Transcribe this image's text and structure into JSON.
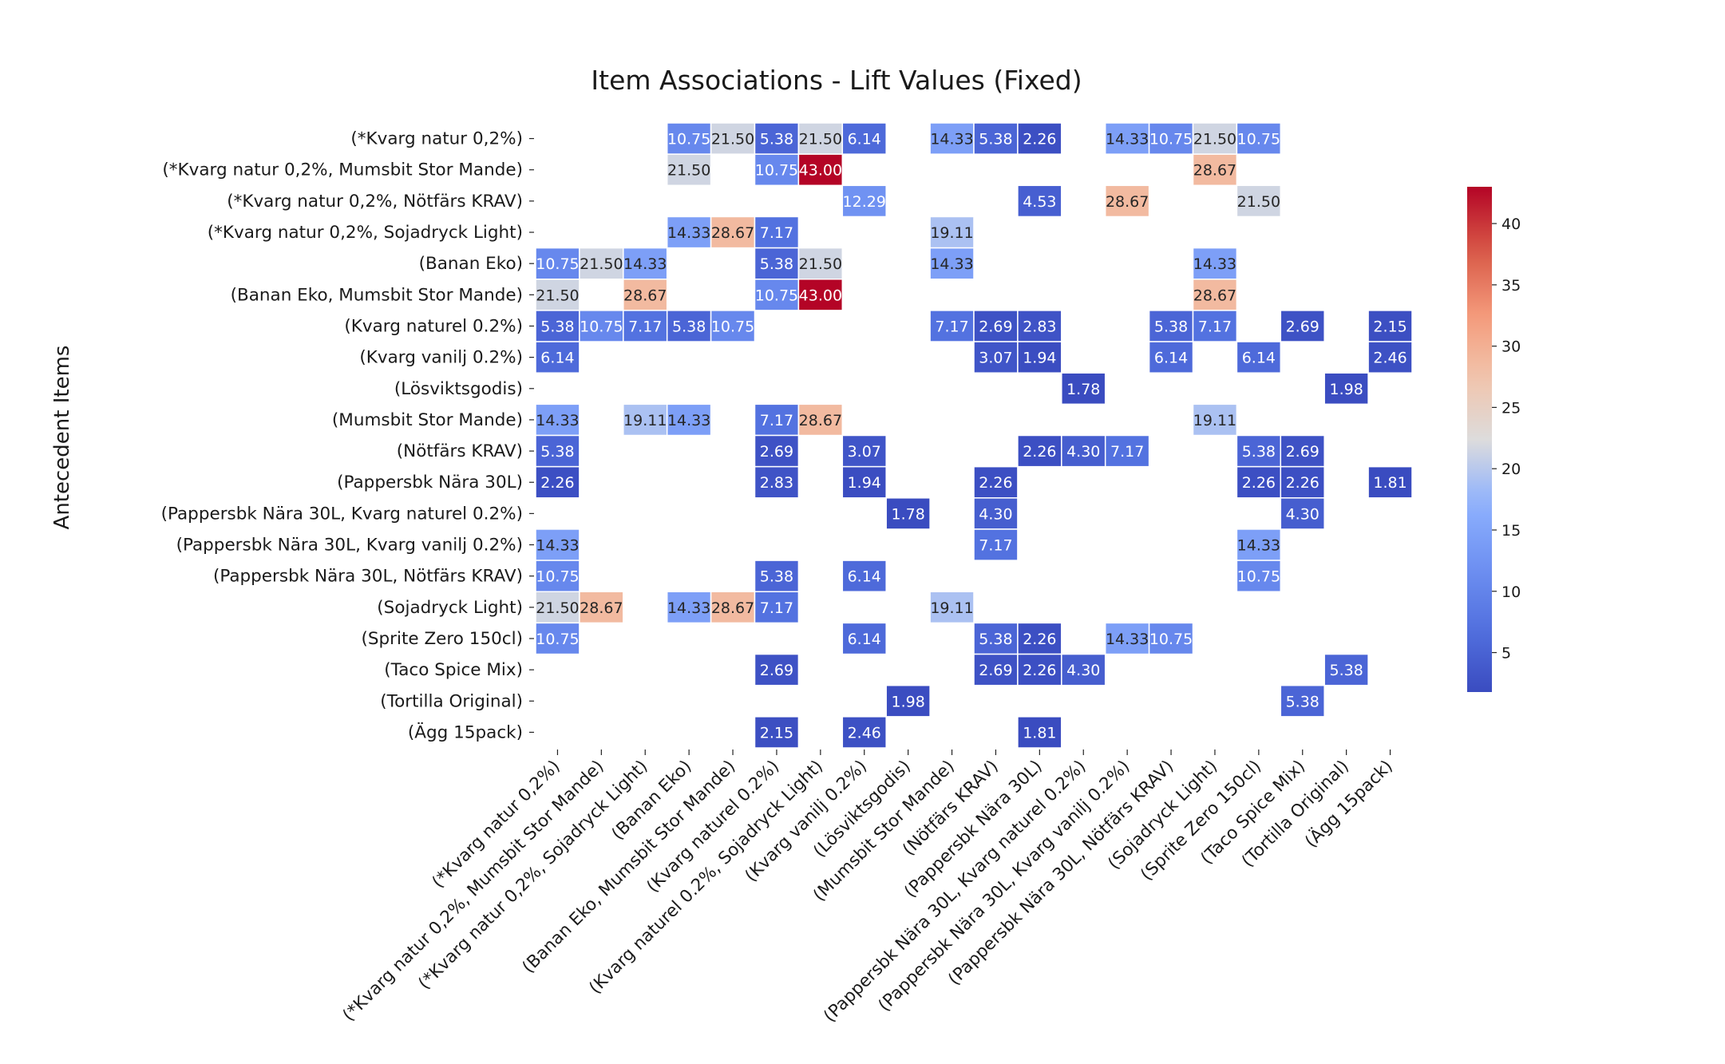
{
  "chart_data": {
    "type": "heatmap",
    "title": "Item Associations - Lift Values (Fixed)",
    "xlabel": "",
    "ylabel": "Antecedent Items",
    "colormap": "coolwarm",
    "colorbar": {
      "vmin": 1.78,
      "vmax": 43.0,
      "ticks": [
        5,
        10,
        15,
        20,
        25,
        30,
        35,
        40
      ]
    },
    "rows": [
      "(*Kvarg natur 0,2%)",
      "(*Kvarg natur 0,2%, Mumsbit Stor Mande)",
      "(*Kvarg natur 0,2%, Nötfärs KRAV)",
      "(*Kvarg natur 0,2%, Sojadryck Light)",
      "(Banan Eko)",
      "(Banan Eko, Mumsbit Stor Mande)",
      "(Kvarg naturel 0.2%)",
      "(Kvarg vanilj 0.2%)",
      "(Lösviktsgodis)",
      "(Mumsbit Stor Mande)",
      "(Nötfärs KRAV)",
      "(Pappersbk Nära 30L)",
      "(Pappersbk Nära 30L, Kvarg naturel 0.2%)",
      "(Pappersbk Nära 30L, Kvarg vanilj 0.2%)",
      "(Pappersbk Nära 30L, Nötfärs KRAV)",
      "(Sojadryck Light)",
      "(Sprite Zero 150cl)",
      "(Taco Spice Mix)",
      "(Tortilla Original)",
      "(Ägg 15pack)"
    ],
    "columns": [
      "(*Kvarg natur 0,2%)",
      "(*Kvarg natur 0,2%, Mumsbit Stor Mande)",
      "(*Kvarg natur 0,2%, Sojadryck Light)",
      "(Banan Eko)",
      "(Banan Eko, Mumsbit Stor Mande)",
      "(Kvarg naturel 0.2%)",
      "(Kvarg naturel 0.2%, Sojadryck Light)",
      "(Kvarg vanilj 0.2%)",
      "(Lösviktsgodis)",
      "(Mumsbit Stor Mande)",
      "(Nötfärs KRAV)",
      "(Pappersbk Nära 30L)",
      "(Pappersbk Nära 30L, Kvarg naturel 0.2%)",
      "(Pappersbk Nära 30L, Kvarg vanilj 0.2%)",
      "(Pappersbk Nära 30L, Nötfärs KRAV)",
      "(Sojadryck Light)",
      "(Sprite Zero 150cl)",
      "(Taco Spice Mix)",
      "(Tortilla Original)",
      "(Ägg 15pack)"
    ],
    "values": [
      [
        null,
        null,
        null,
        10.75,
        21.5,
        5.38,
        21.5,
        6.14,
        null,
        14.33,
        5.38,
        2.26,
        null,
        14.33,
        10.75,
        21.5,
        10.75,
        null,
        null,
        null
      ],
      [
        null,
        null,
        null,
        21.5,
        null,
        10.75,
        43.0,
        null,
        null,
        null,
        null,
        null,
        null,
        null,
        null,
        28.67,
        null,
        null,
        null,
        null
      ],
      [
        null,
        null,
        null,
        null,
        null,
        null,
        null,
        12.29,
        null,
        null,
        null,
        4.53,
        null,
        28.67,
        null,
        null,
        21.5,
        null,
        null,
        null
      ],
      [
        null,
        null,
        null,
        14.33,
        28.67,
        7.17,
        null,
        null,
        null,
        19.11,
        null,
        null,
        null,
        null,
        null,
        null,
        null,
        null,
        null,
        null
      ],
      [
        10.75,
        21.5,
        14.33,
        null,
        null,
        5.38,
        21.5,
        null,
        null,
        14.33,
        null,
        null,
        null,
        null,
        null,
        14.33,
        null,
        null,
        null,
        null
      ],
      [
        21.5,
        null,
        28.67,
        null,
        null,
        10.75,
        43.0,
        null,
        null,
        null,
        null,
        null,
        null,
        null,
        null,
        28.67,
        null,
        null,
        null,
        null
      ],
      [
        5.38,
        10.75,
        7.17,
        5.38,
        10.75,
        null,
        null,
        null,
        null,
        7.17,
        2.69,
        2.83,
        null,
        null,
        5.38,
        7.17,
        null,
        2.69,
        null,
        2.15
      ],
      [
        6.14,
        null,
        null,
        null,
        null,
        null,
        null,
        null,
        null,
        null,
        3.07,
        1.94,
        null,
        null,
        6.14,
        null,
        6.14,
        null,
        null,
        2.46
      ],
      [
        null,
        null,
        null,
        null,
        null,
        null,
        null,
        null,
        null,
        null,
        null,
        null,
        1.78,
        null,
        null,
        null,
        null,
        null,
        1.98,
        null
      ],
      [
        14.33,
        null,
        19.11,
        14.33,
        null,
        7.17,
        28.67,
        null,
        null,
        null,
        null,
        null,
        null,
        null,
        null,
        19.11,
        null,
        null,
        null,
        null
      ],
      [
        5.38,
        null,
        null,
        null,
        null,
        2.69,
        null,
        3.07,
        null,
        null,
        null,
        2.26,
        4.3,
        7.17,
        null,
        null,
        5.38,
        2.69,
        null,
        null
      ],
      [
        2.26,
        null,
        null,
        null,
        null,
        2.83,
        null,
        1.94,
        null,
        null,
        2.26,
        null,
        null,
        null,
        null,
        null,
        2.26,
        2.26,
        null,
        1.81
      ],
      [
        null,
        null,
        null,
        null,
        null,
        null,
        null,
        null,
        1.78,
        null,
        4.3,
        null,
        null,
        null,
        null,
        null,
        null,
        4.3,
        null,
        null
      ],
      [
        14.33,
        null,
        null,
        null,
        null,
        null,
        null,
        null,
        null,
        null,
        7.17,
        null,
        null,
        null,
        null,
        null,
        14.33,
        null,
        null,
        null
      ],
      [
        10.75,
        null,
        null,
        null,
        null,
        5.38,
        null,
        6.14,
        null,
        null,
        null,
        null,
        null,
        null,
        null,
        null,
        10.75,
        null,
        null,
        null
      ],
      [
        21.5,
        28.67,
        null,
        14.33,
        28.67,
        7.17,
        null,
        null,
        null,
        19.11,
        null,
        null,
        null,
        null,
        null,
        null,
        null,
        null,
        null,
        null
      ],
      [
        10.75,
        null,
        null,
        null,
        null,
        null,
        null,
        6.14,
        null,
        null,
        5.38,
        2.26,
        null,
        14.33,
        10.75,
        null,
        null,
        null,
        null,
        null
      ],
      [
        null,
        null,
        null,
        null,
        null,
        2.69,
        null,
        null,
        null,
        null,
        2.69,
        2.26,
        4.3,
        null,
        null,
        null,
        null,
        null,
        5.38,
        null
      ],
      [
        null,
        null,
        null,
        null,
        null,
        null,
        null,
        null,
        1.98,
        null,
        null,
        null,
        null,
        null,
        null,
        null,
        null,
        5.38,
        null,
        null
      ],
      [
        null,
        null,
        null,
        null,
        null,
        2.15,
        null,
        2.46,
        null,
        null,
        null,
        1.81,
        null,
        null,
        null,
        null,
        null,
        null,
        null,
        null
      ]
    ]
  }
}
